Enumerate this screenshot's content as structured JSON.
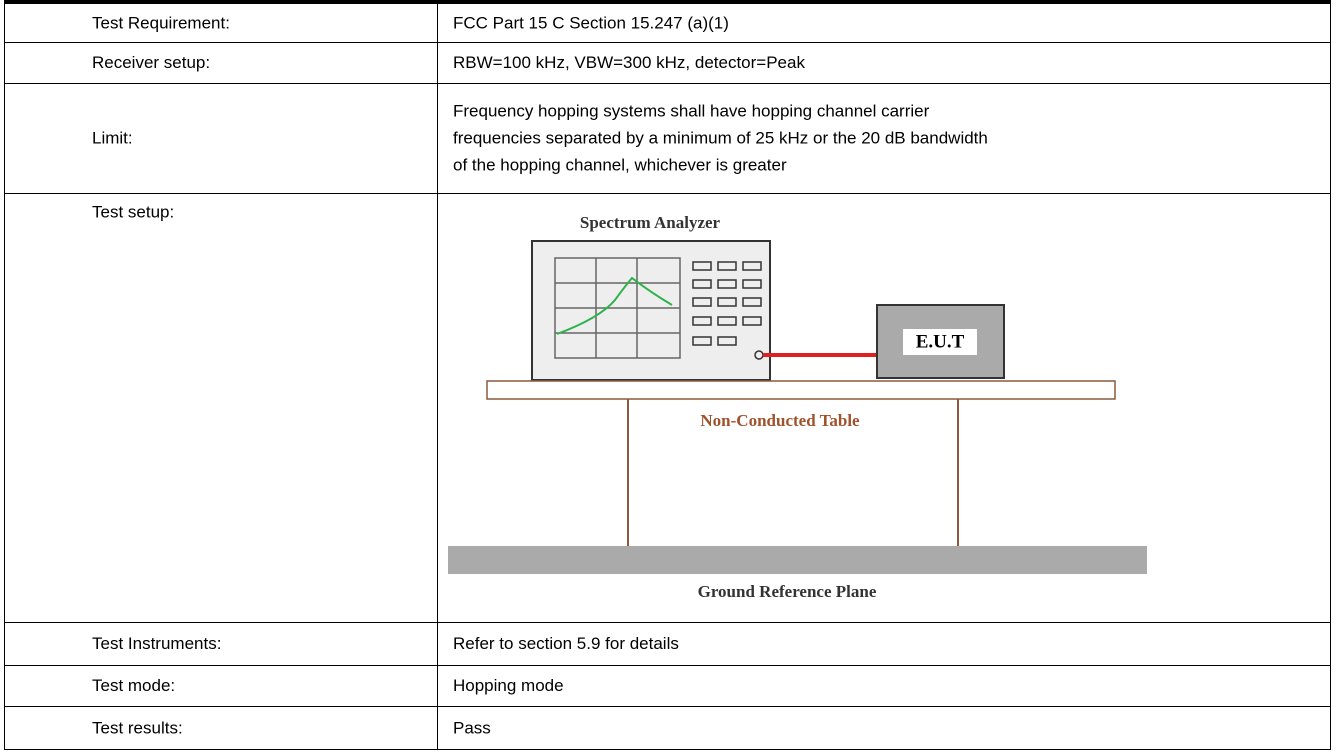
{
  "table": {
    "rows": [
      [
        "Test Requirement:",
        "FCC Part 15 C Section 15.247 (a)(1)"
      ],
      [
        "Receiver setup:",
        "RBW=100 kHz, VBW=300 kHz, detector=Peak"
      ],
      [
        "Limit:",
        [
          "Frequency hopping systems shall have hopping channel carrier",
          "frequencies separated by a minimum of 25 kHz or the 20 dB bandwidth",
          "of the hopping channel, whichever is greater"
        ]
      ],
      [
        "Test setup:"
      ],
      [
        "Test Instruments:",
        "Refer to section 5.9 for details"
      ],
      [
        "Test mode:",
        "Hopping mode"
      ],
      [
        "Test results:",
        "Pass"
      ]
    ]
  },
  "diagram": {
    "analyzer": "Spectrum Analyzer",
    "eut": "E.U.T",
    "table": "Non-Conducted Table",
    "ground": "Ground Reference Plane"
  }
}
